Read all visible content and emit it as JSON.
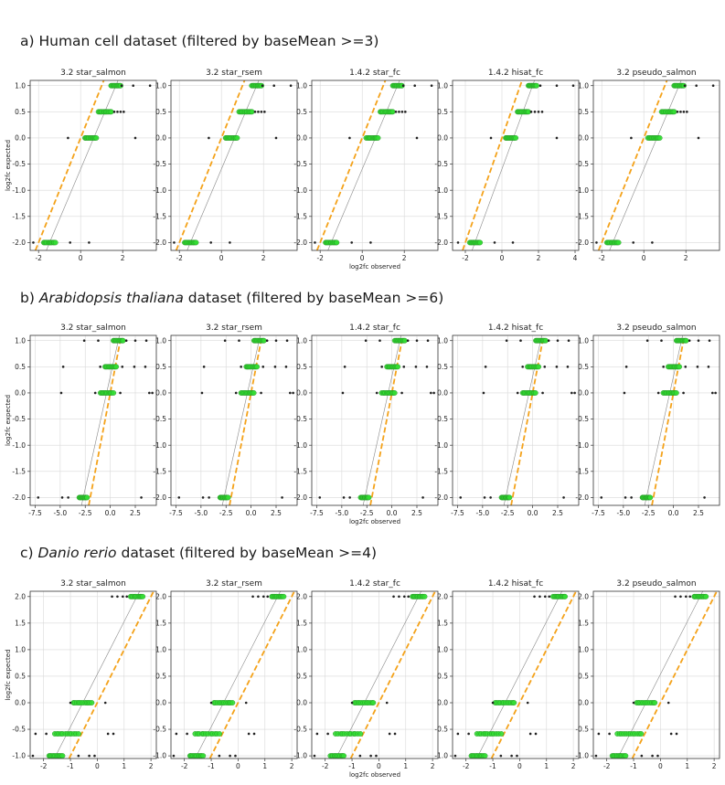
{
  "rows": [
    {
      "prefix": "a) ",
      "species": "",
      "title_rest": "Human cell dataset (filtered by baseMean >=3)"
    },
    {
      "prefix": "b) ",
      "species": "Arabidopsis thaliana",
      "title_rest": " dataset (filtered by baseMean >=6)"
    },
    {
      "prefix": "c) ",
      "species": "Danio rerio",
      "title_rest": " dataset (filtered by baseMean >=4)"
    }
  ],
  "colors": {
    "identity_line": "#f4a21a",
    "fit_line": "#888888",
    "highlight_point": "#33dd33",
    "outlier_point": "#222222",
    "grid": "#d9d9d9"
  },
  "chart_data": [
    {
      "type": "scatter",
      "row": 0,
      "title": "3.2 star_salmon",
      "xlabel": "",
      "ylabel": "log2fc expected",
      "xlim": [
        -2.4,
        3.6
      ],
      "ylim": [
        -2.15,
        1.1
      ],
      "xticks": [
        -2,
        0,
        2
      ],
      "yticks": [
        -2.0,
        -1.5,
        -1.0,
        -0.5,
        0.0,
        0.5,
        1.0
      ],
      "grid": true,
      "expected_levels": [
        1.0,
        0.5,
        0.0,
        -2.0
      ],
      "green_ranges": [
        [
          1.45,
          1.9
        ],
        [
          0.85,
          1.45
        ],
        [
          0.2,
          0.75
        ],
        [
          -1.75,
          -1.2
        ]
      ],
      "outliers": [
        [
          1.95,
          2.5,
          3.3
        ],
        [
          1.6,
          1.75,
          1.9,
          2.05
        ],
        [
          -0.6,
          2.6
        ],
        [
          -2.25,
          -0.5,
          0.4
        ]
      ]
    },
    {
      "type": "scatter",
      "row": 0,
      "title": "3.2 star_rsem",
      "xlabel": "",
      "ylabel": "",
      "xlim": [
        -2.4,
        3.6
      ],
      "ylim": [
        -2.15,
        1.1
      ],
      "xticks": [
        -2,
        0,
        2
      ],
      "yticks": [
        -2.0,
        -1.5,
        -1.0,
        -0.5,
        0.0,
        0.5,
        1.0
      ],
      "grid": true,
      "expected_levels": [
        1.0,
        0.5,
        0.0,
        -2.0
      ],
      "green_ranges": [
        [
          1.45,
          1.9
        ],
        [
          0.85,
          1.45
        ],
        [
          0.2,
          0.75
        ],
        [
          -1.75,
          -1.2
        ]
      ],
      "outliers": [
        [
          1.95,
          2.5,
          3.3
        ],
        [
          1.6,
          1.75,
          1.9,
          2.05
        ],
        [
          -0.6,
          2.6
        ],
        [
          -2.25,
          -0.5,
          0.4
        ]
      ]
    },
    {
      "type": "scatter",
      "row": 0,
      "title": "1.4.2 star_fc",
      "xlabel": "log2fc observed",
      "ylabel": "",
      "xlim": [
        -2.4,
        3.6
      ],
      "ylim": [
        -2.15,
        1.1
      ],
      "xticks": [
        -2,
        0,
        2
      ],
      "yticks": [
        -2.0,
        -1.5,
        -1.0,
        -0.5,
        0.0,
        0.5,
        1.0
      ],
      "grid": true,
      "expected_levels": [
        1.0,
        0.5,
        0.0,
        -2.0
      ],
      "green_ranges": [
        [
          1.45,
          1.9
        ],
        [
          0.85,
          1.45
        ],
        [
          0.2,
          0.75
        ],
        [
          -1.75,
          -1.2
        ]
      ],
      "outliers": [
        [
          1.95,
          2.5,
          3.3
        ],
        [
          1.6,
          1.75,
          1.9,
          2.05
        ],
        [
          -0.6,
          2.6
        ],
        [
          -2.25,
          -0.5,
          0.4
        ]
      ]
    },
    {
      "type": "scatter",
      "row": 0,
      "title": "1.4.2 hisat_fc",
      "xlabel": "",
      "ylabel": "",
      "xlim": [
        -2.7,
        4.2
      ],
      "ylim": [
        -2.15,
        1.1
      ],
      "xticks": [
        -2,
        0,
        2,
        4
      ],
      "yticks": [
        -2.0,
        -1.5,
        -1.0,
        -0.5,
        0.0,
        0.5,
        1.0
      ],
      "grid": true,
      "expected_levels": [
        1.0,
        0.5,
        0.0,
        -2.0
      ],
      "green_ranges": [
        [
          1.45,
          1.9
        ],
        [
          0.85,
          1.45
        ],
        [
          0.2,
          0.75
        ],
        [
          -1.75,
          -1.2
        ]
      ],
      "outliers": [
        [
          2.1,
          3.0,
          3.9
        ],
        [
          1.6,
          1.8,
          2.0,
          2.2
        ],
        [
          -0.6,
          3.0
        ],
        [
          -2.4,
          -0.4,
          0.6
        ]
      ]
    },
    {
      "type": "scatter",
      "row": 0,
      "title": "3.2 pseudo_salmon",
      "xlabel": "",
      "ylabel": "",
      "xlim": [
        -2.4,
        3.6
      ],
      "ylim": [
        -2.15,
        1.1
      ],
      "xticks": [
        -2,
        0,
        2
      ],
      "yticks": [
        -2.0,
        -1.5,
        -1.0,
        -0.5,
        0.0,
        0.5,
        1.0
      ],
      "grid": true,
      "expected_levels": [
        1.0,
        0.5,
        0.0,
        -2.0
      ],
      "green_ranges": [
        [
          1.45,
          1.9
        ],
        [
          0.85,
          1.45
        ],
        [
          0.2,
          0.75
        ],
        [
          -1.75,
          -1.2
        ]
      ],
      "outliers": [
        [
          1.95,
          2.5,
          3.3
        ],
        [
          1.6,
          1.75,
          1.9,
          2.05
        ],
        [
          -0.6,
          2.6
        ],
        [
          -2.25,
          -0.5,
          0.4
        ]
      ]
    },
    {
      "type": "scatter",
      "row": 1,
      "title": "3.2 star_salmon",
      "xlabel": "",
      "ylabel": "log2fc expected",
      "xlim": [
        -8.0,
        4.6
      ],
      "ylim": [
        -2.15,
        1.1
      ],
      "xticks": [
        -7.5,
        -5.0,
        -2.5,
        0.0,
        2.5
      ],
      "yticks": [
        -2.0,
        -1.5,
        -1.0,
        -0.5,
        0.0,
        0.5,
        1.0
      ],
      "grid": true,
      "expected_levels": [
        1.0,
        0.5,
        0.0,
        -2.0
      ],
      "green_ranges": [
        [
          0.3,
          1.3
        ],
        [
          -0.5,
          0.6
        ],
        [
          -1.0,
          0.3
        ],
        [
          -3.1,
          -2.3
        ]
      ],
      "outliers": [
        [
          -2.6,
          -1.2,
          1.6,
          2.5,
          3.6
        ],
        [
          -4.7,
          -1.0,
          1.2,
          2.4,
          3.5
        ],
        [
          -4.9,
          -1.5,
          1.0,
          3.9,
          4.2
        ],
        [
          -7.2,
          -4.8,
          -4.2,
          3.1
        ]
      ]
    },
    {
      "type": "scatter",
      "row": 1,
      "title": "3.2 star_rsem",
      "xlabel": "",
      "ylabel": "",
      "xlim": [
        -8.0,
        4.6
      ],
      "ylim": [
        -2.15,
        1.1
      ],
      "xticks": [
        -7.5,
        -5.0,
        -2.5,
        0.0,
        2.5
      ],
      "yticks": [
        -2.0,
        -1.5,
        -1.0,
        -0.5,
        0.0,
        0.5,
        1.0
      ],
      "grid": true,
      "expected_levels": [
        1.0,
        0.5,
        0.0,
        -2.0
      ],
      "green_ranges": [
        [
          0.3,
          1.3
        ],
        [
          -0.5,
          0.6
        ],
        [
          -1.0,
          0.3
        ],
        [
          -3.1,
          -2.3
        ]
      ],
      "outliers": [
        [
          -2.6,
          -1.2,
          1.6,
          2.5,
          3.6
        ],
        [
          -4.7,
          -1.0,
          1.2,
          2.4,
          3.5
        ],
        [
          -4.9,
          -1.5,
          1.0,
          3.9,
          4.2
        ],
        [
          -7.2,
          -4.8,
          -4.2,
          3.1
        ]
      ]
    },
    {
      "type": "scatter",
      "row": 1,
      "title": "1.4.2 star_fc",
      "xlabel": "log2fc observed",
      "ylabel": "",
      "xlim": [
        -8.0,
        4.6
      ],
      "ylim": [
        -2.15,
        1.1
      ],
      "xticks": [
        -7.5,
        -5.0,
        -2.5,
        0.0,
        2.5
      ],
      "yticks": [
        -2.0,
        -1.5,
        -1.0,
        -0.5,
        0.0,
        0.5,
        1.0
      ],
      "grid": true,
      "expected_levels": [
        1.0,
        0.5,
        0.0,
        -2.0
      ],
      "green_ranges": [
        [
          0.3,
          1.3
        ],
        [
          -0.5,
          0.6
        ],
        [
          -1.0,
          0.3
        ],
        [
          -3.1,
          -2.3
        ]
      ],
      "outliers": [
        [
          -2.6,
          -1.2,
          1.6,
          2.5,
          3.6
        ],
        [
          -4.7,
          -1.0,
          1.2,
          2.4,
          3.5
        ],
        [
          -4.9,
          -1.5,
          1.0,
          3.9,
          4.2
        ],
        [
          -7.2,
          -4.8,
          -4.2,
          3.1
        ]
      ]
    },
    {
      "type": "scatter",
      "row": 1,
      "title": "1.4.2 hisat_fc",
      "xlabel": "",
      "ylabel": "",
      "xlim": [
        -8.0,
        4.6
      ],
      "ylim": [
        -2.15,
        1.1
      ],
      "xticks": [
        -7.5,
        -5.0,
        -2.5,
        0.0,
        2.5
      ],
      "yticks": [
        -2.0,
        -1.5,
        -1.0,
        -0.5,
        0.0,
        0.5,
        1.0
      ],
      "grid": true,
      "expected_levels": [
        1.0,
        0.5,
        0.0,
        -2.0
      ],
      "green_ranges": [
        [
          0.3,
          1.3
        ],
        [
          -0.5,
          0.6
        ],
        [
          -1.0,
          0.3
        ],
        [
          -3.1,
          -2.3
        ]
      ],
      "outliers": [
        [
          -2.6,
          -1.2,
          1.6,
          2.5,
          3.6
        ],
        [
          -4.7,
          -1.0,
          1.2,
          2.4,
          3.5
        ],
        [
          -4.9,
          -1.5,
          1.0,
          3.9,
          4.2
        ],
        [
          -7.2,
          -4.8,
          -4.2,
          3.1
        ]
      ]
    },
    {
      "type": "scatter",
      "row": 1,
      "title": "3.2 pseudo_salmon",
      "xlabel": "",
      "ylabel": "",
      "xlim": [
        -8.0,
        4.6
      ],
      "ylim": [
        -2.15,
        1.1
      ],
      "xticks": [
        -7.5,
        -5.0,
        -2.5,
        0.0,
        2.5
      ],
      "yticks": [
        -2.0,
        -1.5,
        -1.0,
        -0.5,
        0.0,
        0.5,
        1.0
      ],
      "grid": true,
      "expected_levels": [
        1.0,
        0.5,
        0.0,
        -2.0
      ],
      "green_ranges": [
        [
          0.3,
          1.3
        ],
        [
          -0.5,
          0.6
        ],
        [
          -1.0,
          0.3
        ],
        [
          -3.1,
          -2.3
        ]
      ],
      "outliers": [
        [
          -2.6,
          -1.2,
          1.6,
          2.5,
          3.6
        ],
        [
          -4.7,
          -1.0,
          1.2,
          2.4,
          3.5
        ],
        [
          -4.9,
          -1.5,
          1.0,
          3.9,
          4.2
        ],
        [
          -7.2,
          -4.8,
          -4.2,
          3.1
        ]
      ]
    },
    {
      "type": "scatter",
      "row": 2,
      "title": "3.2 star_salmon",
      "xlabel": "",
      "ylabel": "log2fc expected",
      "xlim": [
        -2.5,
        2.2
      ],
      "ylim": [
        -1.05,
        2.1
      ],
      "xticks": [
        -2,
        -1,
        0,
        1,
        2
      ],
      "yticks": [
        -1.0,
        -0.5,
        0.0,
        0.5,
        1.0,
        1.5,
        2.0
      ],
      "grid": true,
      "expected_levels": [
        2.0,
        0.0,
        -0.585,
        -1.0
      ],
      "green_ranges": [
        [
          1.25,
          1.7
        ],
        [
          -0.9,
          -0.2
        ],
        [
          -1.6,
          -0.7
        ],
        [
          -1.8,
          -1.3
        ]
      ],
      "outliers": [
        [
          0.55,
          0.75,
          0.95,
          1.1
        ],
        [
          -1.0,
          0.3
        ],
        [
          -2.3,
          -1.9,
          0.4,
          0.6
        ],
        [
          -2.4,
          -0.7,
          -0.3,
          -0.1
        ]
      ]
    },
    {
      "type": "scatter",
      "row": 2,
      "title": "3.2 star_rsem",
      "xlabel": "",
      "ylabel": "",
      "xlim": [
        -2.5,
        2.2
      ],
      "ylim": [
        -1.05,
        2.1
      ],
      "xticks": [
        -2,
        -1,
        0,
        1,
        2
      ],
      "yticks": [
        -1.0,
        -0.5,
        0.0,
        0.5,
        1.0,
        1.5,
        2.0
      ],
      "grid": true,
      "expected_levels": [
        2.0,
        0.0,
        -0.585,
        -1.0
      ],
      "green_ranges": [
        [
          1.25,
          1.7
        ],
        [
          -0.9,
          -0.2
        ],
        [
          -1.6,
          -0.7
        ],
        [
          -1.8,
          -1.3
        ]
      ],
      "outliers": [
        [
          0.55,
          0.75,
          0.95,
          1.1
        ],
        [
          -1.0,
          0.3
        ],
        [
          -2.3,
          -1.9,
          0.4,
          0.6
        ],
        [
          -2.4,
          -0.7,
          -0.3,
          -0.1
        ]
      ]
    },
    {
      "type": "scatter",
      "row": 2,
      "title": "1.4.2 star_fc",
      "xlabel": "log2fc observed",
      "ylabel": "",
      "xlim": [
        -2.5,
        2.2
      ],
      "ylim": [
        -1.05,
        2.1
      ],
      "xticks": [
        -2,
        -1,
        0,
        1,
        2
      ],
      "yticks": [
        -1.0,
        -0.5,
        0.0,
        0.5,
        1.0,
        1.5,
        2.0
      ],
      "grid": true,
      "expected_levels": [
        2.0,
        0.0,
        -0.585,
        -1.0
      ],
      "green_ranges": [
        [
          1.25,
          1.7
        ],
        [
          -0.9,
          -0.2
        ],
        [
          -1.6,
          -0.7
        ],
        [
          -1.8,
          -1.3
        ]
      ],
      "outliers": [
        [
          0.55,
          0.75,
          0.95,
          1.1
        ],
        [
          -1.0,
          0.3
        ],
        [
          -2.3,
          -1.9,
          0.4,
          0.6
        ],
        [
          -2.4,
          -0.7,
          -0.3,
          -0.1
        ]
      ]
    },
    {
      "type": "scatter",
      "row": 2,
      "title": "1.4.2 hisat_fc",
      "xlabel": "",
      "ylabel": "",
      "xlim": [
        -2.5,
        2.2
      ],
      "ylim": [
        -1.05,
        2.1
      ],
      "xticks": [
        -2,
        -1,
        0,
        1,
        2
      ],
      "yticks": [
        -1.0,
        -0.5,
        0.0,
        0.5,
        1.0,
        1.5,
        2.0
      ],
      "grid": true,
      "expected_levels": [
        2.0,
        0.0,
        -0.585,
        -1.0
      ],
      "green_ranges": [
        [
          1.25,
          1.7
        ],
        [
          -0.9,
          -0.2
        ],
        [
          -1.6,
          -0.7
        ],
        [
          -1.8,
          -1.3
        ]
      ],
      "outliers": [
        [
          0.55,
          0.75,
          0.95,
          1.1
        ],
        [
          -1.0,
          0.3
        ],
        [
          -2.3,
          -1.9,
          0.4,
          0.6
        ],
        [
          -2.4,
          -0.7,
          -0.3,
          -0.1
        ]
      ]
    },
    {
      "type": "scatter",
      "row": 2,
      "title": "3.2 pseudo_salmon",
      "xlabel": "",
      "ylabel": "",
      "xlim": [
        -2.5,
        2.2
      ],
      "ylim": [
        -1.05,
        2.1
      ],
      "xticks": [
        -2,
        -1,
        0,
        1,
        2
      ],
      "yticks": [
        -1.0,
        -0.5,
        0.0,
        0.5,
        1.0,
        1.5,
        2.0
      ],
      "grid": true,
      "expected_levels": [
        2.0,
        0.0,
        -0.585,
        -1.0
      ],
      "green_ranges": [
        [
          1.25,
          1.7
        ],
        [
          -0.9,
          -0.2
        ],
        [
          -1.6,
          -0.7
        ],
        [
          -1.8,
          -1.3
        ]
      ],
      "outliers": [
        [
          0.55,
          0.75,
          0.95,
          1.1
        ],
        [
          -1.0,
          0.3
        ],
        [
          -2.3,
          -1.9,
          0.4,
          0.6
        ],
        [
          -2.4,
          -0.7,
          -0.3,
          -0.1
        ]
      ]
    }
  ]
}
